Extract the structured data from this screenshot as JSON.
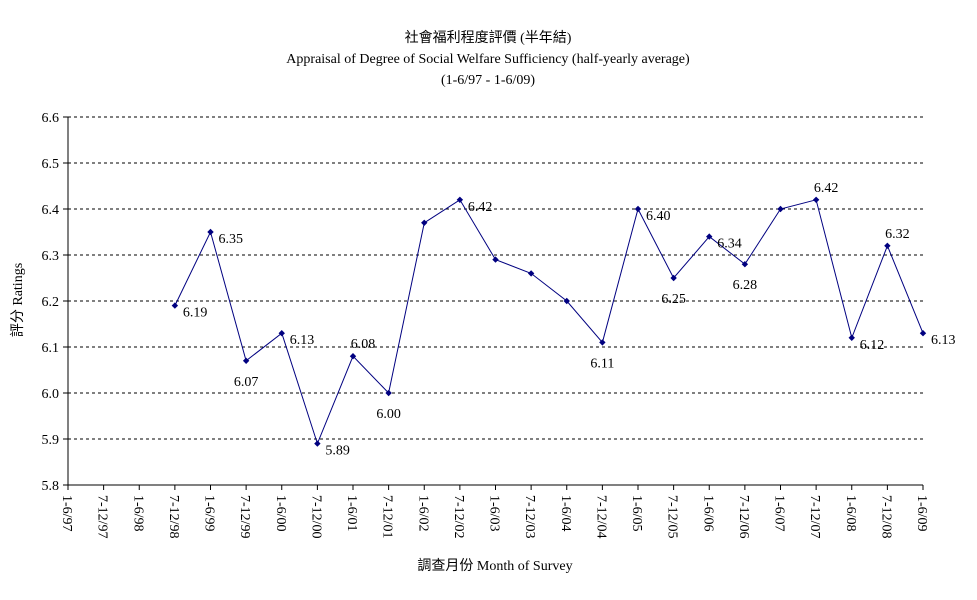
{
  "chart_data": {
    "type": "line",
    "title": "社會福利程度評價 (半年結)",
    "subtitle": "Appraisal of Degree of Social Welfare Sufficiency (half-yearly average)",
    "period": "(1-6/97 - 1-6/09)",
    "xlabel": "調查月份 Month of Survey",
    "ylabel": "評分 Ratings",
    "ylim": [
      5.8,
      6.6
    ],
    "yticks": [
      "6.6",
      "6.5",
      "6.4",
      "6.3",
      "6.2",
      "6.1",
      "6.0",
      "5.9",
      "5.8"
    ],
    "grid": true,
    "categories": [
      "1-6/97",
      "7-12/97",
      "1-6/98",
      "7-12/98",
      "1-6/99",
      "7-12/99",
      "1-6/00",
      "7-12/00",
      "1-6/01",
      "7-12/01",
      "1-6/02",
      "7-12/02",
      "1-6/03",
      "7-12/03",
      "1-6/04",
      "7-12/04",
      "1-6/05",
      "7-12/05",
      "1-6/06",
      "7-12/06",
      "1-6/07",
      "7-12/07",
      "1-6/08",
      "7-12/08",
      "1-6/09"
    ],
    "values": [
      null,
      null,
      null,
      6.19,
      6.35,
      6.07,
      6.13,
      5.89,
      6.08,
      6.0,
      6.37,
      6.42,
      6.29,
      6.26,
      6.2,
      6.11,
      6.4,
      6.25,
      6.34,
      6.28,
      6.4,
      6.42,
      6.12,
      6.32,
      6.13
    ],
    "data_labels": [
      null,
      null,
      null,
      "6.19",
      "6.35",
      "6.07",
      "6.13",
      "5.89",
      "6.08",
      "6.00",
      null,
      "6.42",
      null,
      null,
      null,
      "6.11",
      "6.40",
      "6.25",
      "6.34",
      "6.28",
      null,
      "6.42",
      "6.12",
      "6.32",
      "6.13"
    ],
    "series_color": "#000080"
  }
}
